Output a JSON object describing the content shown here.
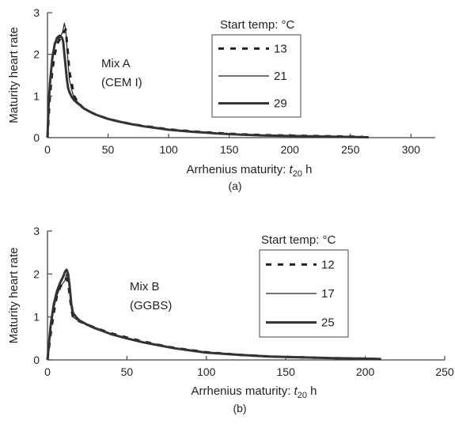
{
  "chart_data": [
    {
      "type": "line",
      "panel_label": "(a)",
      "xlabel_prefix": "Arrhenius maturity: ",
      "xlabel_var": "t",
      "xlabel_sub": "20",
      "xlabel_suffix": " h",
      "ylabel": "Maturity heart rate",
      "xlim": [
        0,
        320
      ],
      "ylim": [
        0,
        3
      ],
      "xticks": [
        "0",
        "50",
        "100",
        "150",
        "200",
        "250",
        "300"
      ],
      "yticks": [
        "0",
        "1",
        "2",
        "3"
      ],
      "annotation": [
        "Mix A",
        "(CEM I)"
      ],
      "legend_title": "Start temp: °C",
      "legend_position": "top-right",
      "series": [
        {
          "name": "13",
          "style": "dashed",
          "x": [
            0,
            1,
            2,
            4,
            6,
            8,
            10,
            12,
            13,
            14,
            15,
            16,
            17,
            18,
            20,
            22,
            25,
            28,
            30,
            35,
            40,
            50,
            60,
            70,
            80,
            90,
            100,
            120,
            140,
            160,
            180,
            200,
            220,
            240,
            260
          ],
          "y": [
            0,
            0.5,
            1.0,
            1.6,
            2.0,
            2.25,
            2.35,
            2.45,
            2.5,
            2.55,
            2.6,
            2.3,
            2.0,
            1.6,
            1.3,
            1.0,
            0.85,
            0.75,
            0.7,
            0.62,
            0.55,
            0.45,
            0.38,
            0.32,
            0.28,
            0.24,
            0.2,
            0.15,
            0.11,
            0.08,
            0.06,
            0.05,
            0.04,
            0.03,
            0.02
          ]
        },
        {
          "name": "21",
          "style": "thin",
          "x": [
            0,
            1,
            2,
            4,
            6,
            8,
            10,
            12,
            13,
            14,
            15,
            16,
            17,
            18,
            20,
            22,
            25,
            28,
            30,
            35,
            40,
            50,
            60,
            70,
            80,
            90,
            100,
            120,
            140,
            160,
            180,
            200,
            220,
            240,
            265
          ],
          "y": [
            0,
            0.7,
            1.2,
            1.8,
            2.2,
            2.35,
            2.4,
            2.5,
            2.6,
            2.75,
            2.6,
            2.2,
            1.8,
            1.4,
            1.15,
            0.95,
            0.85,
            0.78,
            0.72,
            0.64,
            0.56,
            0.46,
            0.39,
            0.33,
            0.28,
            0.24,
            0.2,
            0.15,
            0.11,
            0.08,
            0.06,
            0.05,
            0.04,
            0.03,
            0.02
          ]
        },
        {
          "name": "29",
          "style": "thick",
          "x": [
            0,
            1,
            2,
            4,
            6,
            8,
            10,
            12,
            13,
            14,
            15,
            16,
            17,
            18,
            20,
            22,
            25,
            28,
            30,
            35,
            40,
            50,
            60,
            70,
            80,
            90,
            100,
            120,
            140,
            160,
            180,
            200,
            220,
            240,
            265
          ],
          "y": [
            0,
            0.8,
            1.3,
            1.9,
            2.25,
            2.4,
            2.45,
            2.4,
            2.3,
            2.0,
            1.7,
            1.4,
            1.2,
            1.1,
            0.98,
            0.9,
            0.82,
            0.76,
            0.7,
            0.62,
            0.55,
            0.45,
            0.38,
            0.32,
            0.27,
            0.23,
            0.19,
            0.14,
            0.1,
            0.07,
            0.05,
            0.04,
            0.03,
            0.02,
            0.01
          ]
        }
      ]
    },
    {
      "type": "line",
      "panel_label": "(b)",
      "xlabel_prefix": "Arrhenius maturity: ",
      "xlabel_var": "t",
      "xlabel_sub": "20",
      "xlabel_suffix": " h",
      "ylabel": "Maturity heart rate",
      "xlim": [
        0,
        250
      ],
      "ylim": [
        0,
        3
      ],
      "xticks": [
        "0",
        "50",
        "100",
        "150",
        "200",
        "250"
      ],
      "yticks": [
        "0",
        "1",
        "2",
        "3"
      ],
      "annotation": [
        "Mix B",
        "(GGBS)"
      ],
      "legend_title": "Start temp: °C",
      "legend_position": "top-right",
      "series": [
        {
          "name": "12",
          "style": "dashed",
          "x": [
            0,
            1,
            2,
            4,
            6,
            8,
            10,
            11,
            12,
            13,
            14,
            15,
            16,
            18,
            20,
            25,
            30,
            40,
            50,
            60,
            70,
            80,
            90,
            100,
            120,
            140,
            160,
            180,
            200,
            210
          ],
          "y": [
            0,
            0.3,
            0.6,
            1.1,
            1.5,
            1.7,
            1.8,
            1.85,
            1.9,
            1.8,
            1.5,
            1.2,
            1.0,
            0.95,
            0.9,
            0.82,
            0.75,
            0.62,
            0.52,
            0.43,
            0.35,
            0.28,
            0.23,
            0.18,
            0.12,
            0.08,
            0.06,
            0.04,
            0.03,
            0.02
          ]
        },
        {
          "name": "17",
          "style": "thin",
          "x": [
            0,
            1,
            2,
            4,
            6,
            8,
            10,
            11,
            12,
            13,
            14,
            15,
            16,
            18,
            20,
            25,
            30,
            40,
            50,
            60,
            70,
            80,
            90,
            100,
            120,
            140,
            160,
            180,
            200,
            210
          ],
          "y": [
            0,
            0.4,
            0.7,
            1.2,
            1.5,
            1.7,
            1.8,
            1.85,
            2.0,
            1.9,
            1.6,
            1.2,
            1.0,
            0.95,
            0.9,
            0.8,
            0.72,
            0.6,
            0.5,
            0.42,
            0.34,
            0.28,
            0.22,
            0.18,
            0.12,
            0.08,
            0.06,
            0.04,
            0.03,
            0.02
          ]
        },
        {
          "name": "25",
          "style": "thick",
          "x": [
            0,
            1,
            2,
            4,
            6,
            8,
            10,
            11,
            12,
            13,
            14,
            15,
            16,
            18,
            20,
            25,
            30,
            40,
            50,
            60,
            70,
            80,
            90,
            100,
            120,
            140,
            160,
            180,
            200,
            210
          ],
          "y": [
            0,
            0.4,
            0.8,
            1.3,
            1.6,
            1.8,
            1.95,
            2.05,
            2.1,
            2.0,
            1.7,
            1.3,
            1.1,
            1.0,
            0.92,
            0.82,
            0.74,
            0.6,
            0.5,
            0.41,
            0.34,
            0.27,
            0.22,
            0.17,
            0.12,
            0.08,
            0.06,
            0.04,
            0.03,
            0.02
          ]
        }
      ]
    }
  ]
}
